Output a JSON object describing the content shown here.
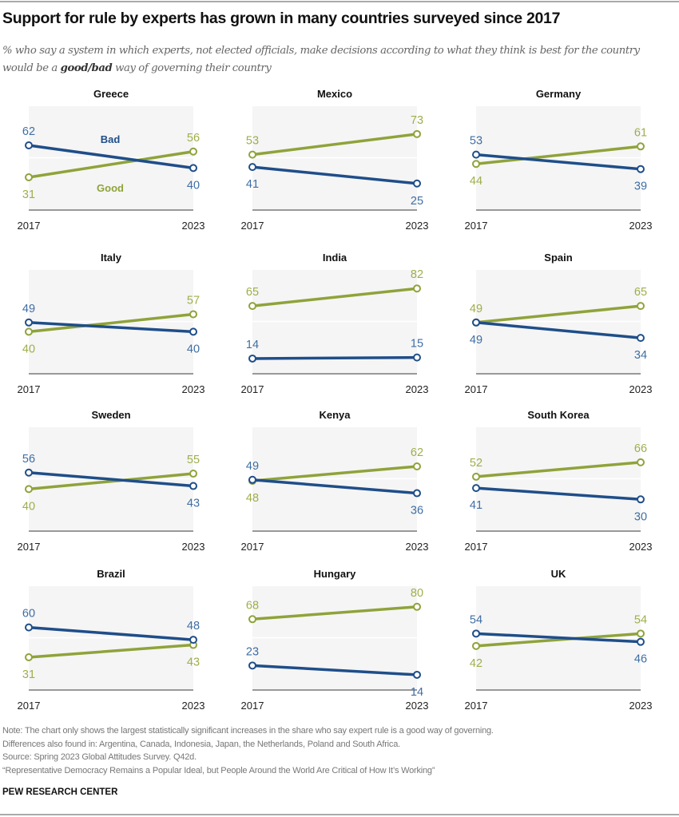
{
  "title": "Support for rule by experts has grown in many countries surveyed since 2017",
  "subtitle": {
    "before": "% who say a system in which experts, not elected officials, make decisions according to what they think is best for the country would be a ",
    "bold": "good/bad",
    "after": " way of governing their country"
  },
  "colors": {
    "good": "#8fa33a",
    "good_label": "#9fae4a",
    "bad": "#1f4e89",
    "bad_label": "#3f6ea4",
    "panel_bg": "#f5f5f5"
  },
  "chart_data": {
    "type": "line",
    "x": [
      "2017",
      "2023"
    ],
    "ylim": [
      0,
      100
    ],
    "series_labels": {
      "good": "Good",
      "bad": "Bad"
    },
    "panels": [
      {
        "country": "Greece",
        "good": [
          31,
          56
        ],
        "bad": [
          62,
          40
        ]
      },
      {
        "country": "Mexico",
        "good": [
          53,
          73
        ],
        "bad": [
          41,
          25
        ]
      },
      {
        "country": "Germany",
        "good": [
          44,
          61
        ],
        "bad": [
          53,
          39
        ]
      },
      {
        "country": "Italy",
        "good": [
          40,
          57
        ],
        "bad": [
          49,
          40
        ]
      },
      {
        "country": "India",
        "good": [
          65,
          82
        ],
        "bad": [
          14,
          15
        ]
      },
      {
        "country": "Spain",
        "good": [
          49,
          65
        ],
        "bad": [
          49,
          34
        ]
      },
      {
        "country": "Sweden",
        "good": [
          40,
          55
        ],
        "bad": [
          56,
          43
        ]
      },
      {
        "country": "Kenya",
        "good": [
          48,
          62
        ],
        "bad": [
          49,
          36
        ]
      },
      {
        "country": "South Korea",
        "good": [
          52,
          66
        ],
        "bad": [
          41,
          30
        ]
      },
      {
        "country": "Brazil",
        "good": [
          31,
          43
        ],
        "bad": [
          60,
          48
        ]
      },
      {
        "country": "Hungary",
        "good": [
          68,
          80
        ],
        "bad": [
          23,
          14
        ]
      },
      {
        "country": "UK",
        "good": [
          42,
          54
        ],
        "bad": [
          54,
          46
        ]
      }
    ]
  },
  "notes": [
    "Note: The chart only shows the largest statistically significant increases in the share who say expert rule is a good way of governing.",
    "Differences also found in: Argentina, Canada, Indonesia, Japan, the Netherlands, Poland and South Africa.",
    "Source: Spring 2023 Global Attitudes Survey. Q42d.",
    "“Representative Democracy Remains a Popular Ideal, but People Around the World Are Critical of How It’s Working”"
  ],
  "source_org": "PEW RESEARCH CENTER"
}
